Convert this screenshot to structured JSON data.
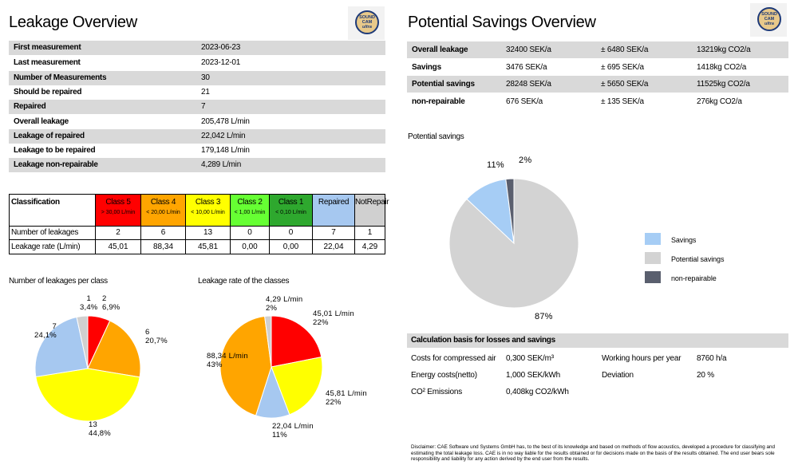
{
  "left": {
    "title": "Leakage Overview",
    "logo_text": [
      "SOUND",
      "CAM",
      "ultra"
    ],
    "overview": [
      {
        "label": "First measurement",
        "value": "2023-06-23"
      },
      {
        "label": "Last measurement",
        "value": "2023-12-01"
      },
      {
        "label": "Number of Measurements",
        "value": "30"
      },
      {
        "label": "Should be repaired",
        "value": "21"
      },
      {
        "label": "Repaired",
        "value": "7"
      },
      {
        "label": "Overall leakage",
        "value": "205,478 L/min"
      },
      {
        "label": "Leakage of repaired",
        "value": "22,042 L/min"
      },
      {
        "label": "Leakage to be repaired",
        "value": "179,148 L/min"
      },
      {
        "label": "Leakage non-repairable",
        "value": "4,289 L/min"
      }
    ],
    "classification": {
      "header_label": "Classification",
      "row1_label": "Number of leakages",
      "row2_label": "Leakage rate (L/min)",
      "classes": [
        {
          "name": "Class 5",
          "sub": "> 30,00 L/min",
          "color": "#ff0000",
          "count": "2",
          "rate": "45,01"
        },
        {
          "name": "Class 4",
          "sub": "< 20,00 L/min",
          "color": "#ffa500",
          "count": "6",
          "rate": "88,34"
        },
        {
          "name": "Class 3",
          "sub": "< 10,00 L/min",
          "color": "#ffff00",
          "count": "13",
          "rate": "45,81"
        },
        {
          "name": "Class 2",
          "sub": "< 1,00 L/min",
          "color": "#66ff33",
          "count": "0",
          "rate": "0,00"
        },
        {
          "name": "Class 1",
          "sub": "< 0,10 L/min",
          "color": "#2ea82e",
          "count": "0",
          "rate": "0,00"
        },
        {
          "name": "Repaired",
          "sub": "",
          "color": "#a6c8f0",
          "count": "7",
          "rate": "22,04"
        },
        {
          "name": "NotRepair",
          "sub": "",
          "color": "#d0d0d0",
          "count": "1",
          "rate": "4,29"
        }
      ]
    },
    "pie1_title": "Number of leakages per class",
    "pie2_title": "Leakage rate of the classes"
  },
  "chart_data": [
    {
      "type": "pie",
      "title": "Number of leakages per class",
      "slices": [
        {
          "label": "2\n6,9%",
          "value": 6.9,
          "color": "#ff0000"
        },
        {
          "label": "6\n20,7%",
          "value": 20.7,
          "color": "#ffa500"
        },
        {
          "label": "13\n44,8%",
          "value": 44.8,
          "color": "#ffff00"
        },
        {
          "label": "7\n24,1%",
          "value": 24.1,
          "color": "#a6c8f0"
        },
        {
          "label": "1\n3,4%",
          "value": 3.4,
          "color": "#d0d0d0"
        }
      ]
    },
    {
      "type": "pie",
      "title": "Leakage rate of the classes",
      "slices": [
        {
          "label": "45,01 L/min\n22%",
          "value": 45.01,
          "color": "#ff0000"
        },
        {
          "label": "45,81 L/min\n22%",
          "value": 45.81,
          "color": "#ffff00"
        },
        {
          "label": "22,04 L/min\n11%",
          "value": 22.04,
          "color": "#a6c8f0"
        },
        {
          "label": "88,34 L/min\n43%",
          "value": 88.34,
          "color": "#ffa500"
        },
        {
          "label": "4,29 L/min\n2%",
          "value": 4.29,
          "color": "#d0d0d0"
        }
      ]
    },
    {
      "type": "pie",
      "title": "Potential savings",
      "slices": [
        {
          "label": "87%",
          "value": 87,
          "color": "#d3d3d3",
          "name": "Potential savings"
        },
        {
          "label": "11%",
          "value": 11,
          "color": "#a6cdf5",
          "name": "Savings"
        },
        {
          "label": "2%",
          "value": 2,
          "color": "#5a5f6e",
          "name": "non-repairable"
        }
      ]
    }
  ],
  "right": {
    "title": "Potential Savings Overview",
    "savings_table": [
      {
        "label": "Overall leakage",
        "sek": "32400 SEK/a",
        "pm": "± 6480 SEK/a",
        "co2": "13219kg CO2/a",
        "shade": true
      },
      {
        "label": "Savings",
        "sek": "3476 SEK/a",
        "pm": "± 695 SEK/a",
        "co2": "1418kg CO2/a",
        "shade": false
      },
      {
        "label": "Potential savings",
        "sek": "28248 SEK/a",
        "pm": "± 5650 SEK/a",
        "co2": "11525kg CO2/a",
        "shade": true
      },
      {
        "label": "non-repairable",
        "sek": "676 SEK/a",
        "pm": "± 135 SEK/a",
        "co2": "276kg CO2/a",
        "shade": false
      }
    ],
    "pie_title": "Potential savings",
    "legend": [
      "Savings",
      "Potential savings",
      "non-repairable"
    ],
    "calc": {
      "title": "Calculation basis for losses and savings",
      "compressed_label": "Costs for compressed air",
      "compressed_value": "0,300 SEK/m³",
      "energy_label": "Energy costs(netto)",
      "energy_value": "1,000 SEK/kWh",
      "co2_label": "CO² Emissions",
      "co2_value": "0,408kg CO2/kWh",
      "hours_label": "Working hours per year",
      "hours_value": "8760 h/a",
      "deviation_label": "Deviation",
      "deviation_value": "20 %"
    },
    "disclaimer": "Disclaimer: CAE Software und Systems GmbH has, to the best of its knowledge and based on methods of flow acoustics, developed a procedure for classifying and estimating the total leakage loss. CAE is in no way liable for the results obtained or for decisions made on the basis of the results obtained. The end user bears sole responsibility and liability for any action derived by the end user from the results."
  }
}
